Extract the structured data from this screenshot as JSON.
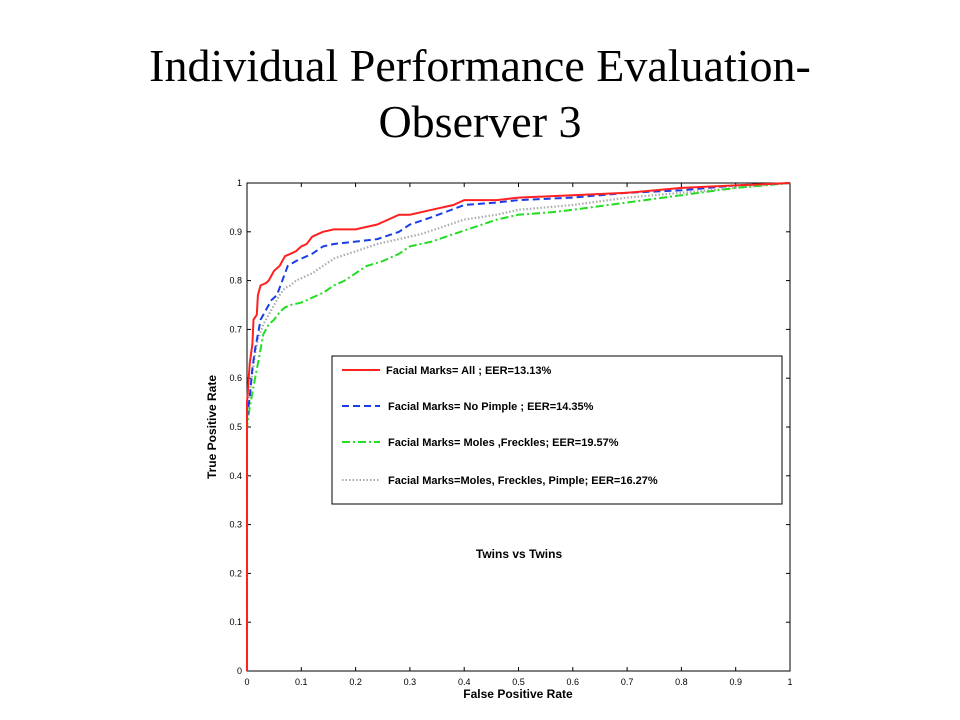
{
  "slide": {
    "title_line1": "Individual Performance Evaluation-",
    "title_line2": "Observer 3"
  },
  "chart_data": {
    "type": "line",
    "title": "",
    "xlabel": "False Positive Rate",
    "ylabel": "True Positive Rate",
    "xlim": [
      0,
      1
    ],
    "ylim": [
      0,
      1
    ],
    "xticks": [
      "0",
      "0.1",
      "0.2",
      "0.3",
      "0.4",
      "0.5",
      "0.6",
      "0.7",
      "0.8",
      "0.9",
      "1"
    ],
    "yticks": [
      "0",
      "0.1",
      "0.2",
      "0.3",
      "0.4",
      "0.5",
      "0.6",
      "0.7",
      "0.8",
      "0.9",
      "1"
    ],
    "grid": false,
    "legend_position": "center-right",
    "annotation": "Twins vs Twins",
    "series": [
      {
        "name": "Facial Marks= All ; EER=13.13%",
        "color": "#ff2020",
        "style": "solid",
        "points": [
          [
            0,
            0
          ],
          [
            0,
            0.55
          ],
          [
            0.002,
            0.58
          ],
          [
            0.005,
            0.63
          ],
          [
            0.01,
            0.67
          ],
          [
            0.012,
            0.72
          ],
          [
            0.018,
            0.73
          ],
          [
            0.02,
            0.77
          ],
          [
            0.025,
            0.79
          ],
          [
            0.035,
            0.795
          ],
          [
            0.04,
            0.8
          ],
          [
            0.05,
            0.82
          ],
          [
            0.06,
            0.83
          ],
          [
            0.07,
            0.85
          ],
          [
            0.08,
            0.855
          ],
          [
            0.09,
            0.86
          ],
          [
            0.1,
            0.87
          ],
          [
            0.11,
            0.875
          ],
          [
            0.12,
            0.89
          ],
          [
            0.13,
            0.895
          ],
          [
            0.14,
            0.9
          ],
          [
            0.16,
            0.905
          ],
          [
            0.2,
            0.905
          ],
          [
            0.22,
            0.91
          ],
          [
            0.24,
            0.915
          ],
          [
            0.26,
            0.925
          ],
          [
            0.28,
            0.935
          ],
          [
            0.3,
            0.935
          ],
          [
            0.34,
            0.945
          ],
          [
            0.38,
            0.955
          ],
          [
            0.4,
            0.965
          ],
          [
            0.46,
            0.965
          ],
          [
            0.5,
            0.97
          ],
          [
            0.6,
            0.975
          ],
          [
            0.7,
            0.98
          ],
          [
            0.8,
            0.99
          ],
          [
            0.9,
            0.995
          ],
          [
            1,
            1
          ]
        ]
      },
      {
        "name": "Facial Marks= No Pimple ; EER=14.35%",
        "color": "#1a3ee6",
        "style": "dashed",
        "points": [
          [
            0,
            0
          ],
          [
            0,
            0.52
          ],
          [
            0.005,
            0.56
          ],
          [
            0.01,
            0.62
          ],
          [
            0.015,
            0.66
          ],
          [
            0.02,
            0.69
          ],
          [
            0.025,
            0.72
          ],
          [
            0.035,
            0.74
          ],
          [
            0.045,
            0.76
          ],
          [
            0.055,
            0.77
          ],
          [
            0.065,
            0.8
          ],
          [
            0.075,
            0.83
          ],
          [
            0.09,
            0.84
          ],
          [
            0.1,
            0.845
          ],
          [
            0.12,
            0.855
          ],
          [
            0.14,
            0.87
          ],
          [
            0.16,
            0.875
          ],
          [
            0.2,
            0.88
          ],
          [
            0.24,
            0.885
          ],
          [
            0.28,
            0.9
          ],
          [
            0.3,
            0.915
          ],
          [
            0.34,
            0.93
          ],
          [
            0.4,
            0.955
          ],
          [
            0.46,
            0.96
          ],
          [
            0.5,
            0.965
          ],
          [
            0.6,
            0.97
          ],
          [
            0.7,
            0.98
          ],
          [
            0.8,
            0.985
          ],
          [
            0.9,
            0.995
          ],
          [
            1,
            1
          ]
        ]
      },
      {
        "name": "Facial Marks= Moles ,Freckles; EER=19.57%",
        "color": "#22dd22",
        "style": "dashdot",
        "points": [
          [
            0,
            0
          ],
          [
            0,
            0.5
          ],
          [
            0.005,
            0.54
          ],
          [
            0.01,
            0.57
          ],
          [
            0.015,
            0.6
          ],
          [
            0.02,
            0.63
          ],
          [
            0.025,
            0.66
          ],
          [
            0.03,
            0.69
          ],
          [
            0.04,
            0.71
          ],
          [
            0.05,
            0.72
          ],
          [
            0.06,
            0.735
          ],
          [
            0.07,
            0.745
          ],
          [
            0.08,
            0.75
          ],
          [
            0.1,
            0.755
          ],
          [
            0.12,
            0.765
          ],
          [
            0.14,
            0.775
          ],
          [
            0.16,
            0.79
          ],
          [
            0.18,
            0.8
          ],
          [
            0.2,
            0.815
          ],
          [
            0.22,
            0.83
          ],
          [
            0.25,
            0.84
          ],
          [
            0.28,
            0.855
          ],
          [
            0.3,
            0.87
          ],
          [
            0.34,
            0.88
          ],
          [
            0.38,
            0.895
          ],
          [
            0.42,
            0.91
          ],
          [
            0.46,
            0.925
          ],
          [
            0.5,
            0.935
          ],
          [
            0.56,
            0.94
          ],
          [
            0.6,
            0.945
          ],
          [
            0.7,
            0.96
          ],
          [
            0.8,
            0.975
          ],
          [
            0.9,
            0.99
          ],
          [
            1,
            1
          ]
        ]
      },
      {
        "name": "Facial Marks=Moles, Freckles, Pimple; EER=16.27%",
        "color": "#aaaaaa",
        "style": "dotted",
        "points": [
          [
            0,
            0
          ],
          [
            0,
            0.53
          ],
          [
            0.005,
            0.57
          ],
          [
            0.01,
            0.61
          ],
          [
            0.015,
            0.65
          ],
          [
            0.02,
            0.68
          ],
          [
            0.03,
            0.71
          ],
          [
            0.04,
            0.73
          ],
          [
            0.05,
            0.75
          ],
          [
            0.06,
            0.77
          ],
          [
            0.07,
            0.785
          ],
          [
            0.08,
            0.79
          ],
          [
            0.09,
            0.8
          ],
          [
            0.1,
            0.805
          ],
          [
            0.12,
            0.815
          ],
          [
            0.14,
            0.83
          ],
          [
            0.16,
            0.845
          ],
          [
            0.2,
            0.86
          ],
          [
            0.24,
            0.875
          ],
          [
            0.28,
            0.885
          ],
          [
            0.32,
            0.895
          ],
          [
            0.36,
            0.91
          ],
          [
            0.4,
            0.925
          ],
          [
            0.46,
            0.935
          ],
          [
            0.5,
            0.945
          ],
          [
            0.6,
            0.955
          ],
          [
            0.7,
            0.97
          ],
          [
            0.8,
            0.98
          ],
          [
            0.9,
            0.99
          ],
          [
            1,
            1
          ]
        ]
      }
    ]
  }
}
